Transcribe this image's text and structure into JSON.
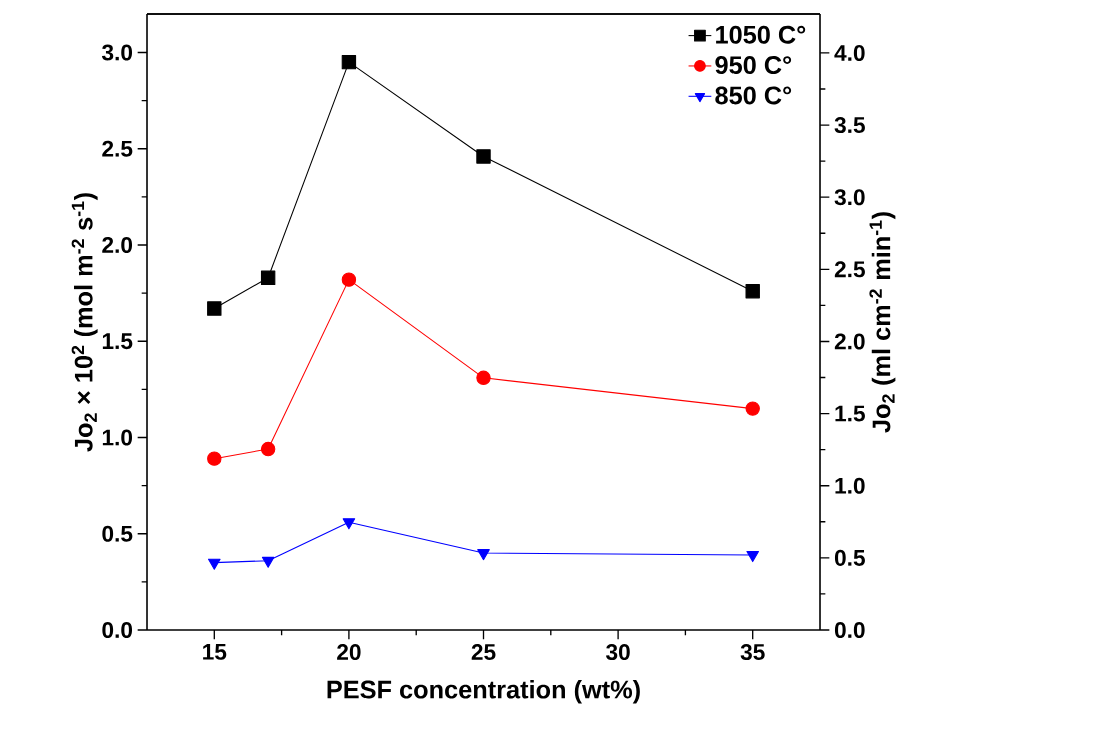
{
  "chart_data": {
    "type": "line",
    "xlabel": "PESF concentration (wt%)",
    "ylabel": "Jo$_{2}$ × 10$^{2}$ (mol m$^{-2}$ s$^{-1}$)",
    "y2label": "Jo$_{2}$ (ml cm$^{-2}$ min$^{-1}$)",
    "x": [
      15,
      17,
      20,
      25,
      35
    ],
    "series": [
      {
        "name": "1050 C°",
        "color": "#000000",
        "marker": "square",
        "values": [
          1.67,
          1.83,
          2.95,
          2.46,
          1.76
        ]
      },
      {
        "name": "950 C°",
        "color": "#ff0000",
        "marker": "circle",
        "values": [
          0.89,
          0.94,
          1.82,
          1.31,
          1.15
        ]
      },
      {
        "name": "850 C°",
        "color": "#0000ff",
        "marker": "triangle",
        "values": [
          0.35,
          0.36,
          0.56,
          0.4,
          0.39
        ]
      }
    ],
    "xlim": [
      12.5,
      37.5
    ],
    "xticks": [
      15,
      20,
      25,
      30,
      35
    ],
    "ylim": [
      0,
      3.2
    ],
    "yticks": [
      {
        "value": 0,
        "label": "0.0"
      },
      0.5,
      {
        "value": 1,
        "label": "1.0"
      },
      1.5,
      {
        "value": 2,
        "label": "2.0"
      },
      2.5,
      {
        "value": 3,
        "label": "3.0"
      }
    ],
    "y2lim": [
      0,
      4.27
    ],
    "y2ticks": [
      {
        "value": 0,
        "label": "0.0"
      },
      0.5,
      {
        "value": 1,
        "label": "1.0"
      },
      1.5,
      {
        "value": 2,
        "label": "2.0"
      },
      2.5,
      {
        "value": 3,
        "label": "3.0"
      },
      3.5,
      {
        "value": 4,
        "label": "4.0"
      }
    ],
    "line_style": "solid",
    "grid": false,
    "legend": "top right"
  }
}
